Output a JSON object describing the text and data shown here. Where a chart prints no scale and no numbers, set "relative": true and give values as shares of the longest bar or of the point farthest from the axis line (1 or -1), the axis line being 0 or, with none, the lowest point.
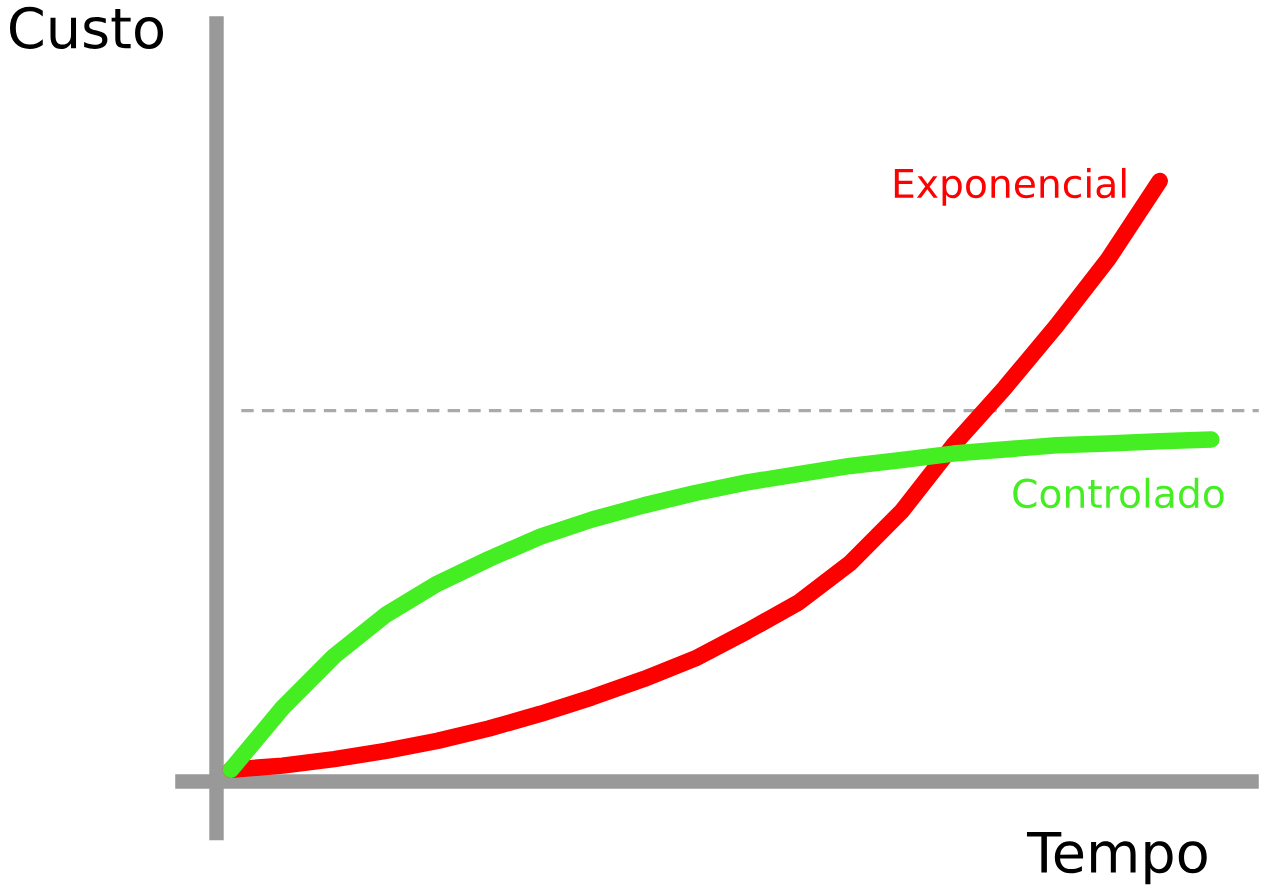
{
  "chart_data": {
    "type": "line",
    "relative": true,
    "xlabel": "Tempo",
    "ylabel": "Custo",
    "categories": [
      null,
      null,
      null,
      null,
      null,
      null,
      null,
      null,
      null,
      null,
      null,
      null,
      null,
      null,
      null,
      null,
      null,
      null,
      null,
      null
    ],
    "series": [
      {
        "name": "Exponencial",
        "color": "#ff0000",
        "values": [
          0,
          0.007,
          0.018,
          0.032,
          0.049,
          0.07,
          0.095,
          0.123,
          0.154,
          0.189,
          0.235,
          0.284,
          0.351,
          0.439,
          0.551,
          0.649,
          0.754,
          0.867,
          1,
          null
        ]
      },
      {
        "name": "Controlado",
        "color": "#44ee22",
        "values": [
          0,
          0.105,
          0.193,
          0.263,
          0.316,
          0.358,
          0.396,
          0.425,
          0.449,
          0.47,
          0.488,
          0.502,
          0.516,
          0.526,
          0.537,
          0.544,
          0.551,
          0.554,
          0.558,
          0.561
        ]
      }
    ],
    "ref_lines": [
      {
        "axis": "y",
        "value": 0.61,
        "color": "#aaaaaa",
        "line_style": "dashed"
      }
    ]
  }
}
